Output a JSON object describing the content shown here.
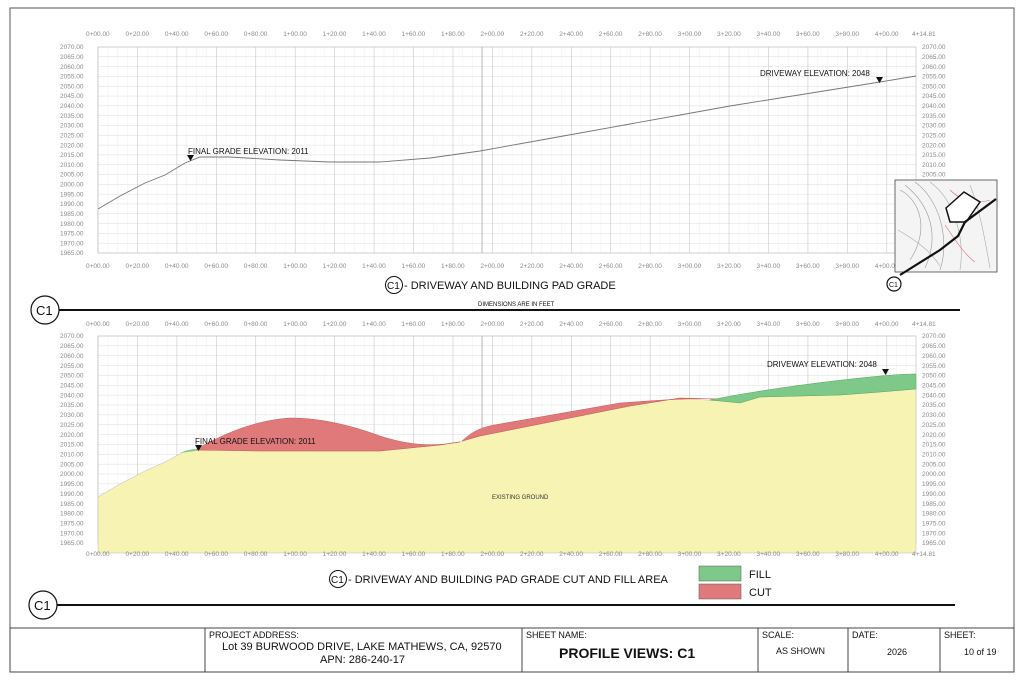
{
  "sheet": {
    "markers": {
      "c1_label": "C1"
    },
    "profile_top": {
      "title": "C1 - DRIVEWAY AND BUILDING PAD GRADE",
      "title_tag": "C1",
      "title_text": " - DRIVEWAY AND BUILDING PAD GRADE",
      "note": "DIMENSIONS ARE IN FEET",
      "annotations": [
        "FINAL GRADE ELEVATION: 2011",
        "DRIVEWAY ELEVATION: 2048"
      ]
    },
    "profile_bottom": {
      "title_tag": "C1",
      "title_text": " - DRIVEWAY AND BUILDING PAD GRADE CUT AND FILL AREA",
      "annotations": [
        "FINAL GRADE ELEVATION: 2011",
        "DRIVEWAY ELEVATION: 2048"
      ],
      "region_label": "EXISTING GROUND",
      "legend": [
        {
          "label": "FILL",
          "color": "#7ec98a"
        },
        {
          "label": "CUT",
          "color": "#e07a7a"
        }
      ]
    },
    "x_ticks": [
      "0+00.00",
      "0+20.00",
      "0+40.00",
      "0+60.00",
      "0+80.00",
      "1+00.00",
      "1+20.00",
      "1+40.00",
      "1+60.00",
      "1+80.00",
      "2+00.00",
      "2+20.00",
      "2+40.00",
      "2+60.00",
      "2+80.00",
      "3+00.00",
      "3+20.00",
      "3+40.00",
      "3+60.00",
      "3+80.00",
      "4+00.00",
      "4+14.81"
    ],
    "y_ticks": [
      "2070.00",
      "2065.00",
      "2060.00",
      "2055.00",
      "2050.00",
      "2045.00",
      "2040.00",
      "2035.00",
      "2030.00",
      "2025.00",
      "2020.00",
      "2015.00",
      "2010.00",
      "2005.00",
      "2000.00",
      "1995.00",
      "1990.00",
      "1985.00",
      "1980.00",
      "1975.00",
      "1970.00",
      "1965.00"
    ],
    "colors": {
      "fill": "#7ec98a",
      "cut": "#e07a7a",
      "existing_ground": "#f6f3b3",
      "grid": "#dcdcdc"
    }
  },
  "title_block": {
    "project_address_label": "PROJECT ADDRESS:",
    "project_address": "Lot 39 BURWOOD DRIVE, LAKE MATHEWS, CA, 92570",
    "apn": "APN: 286-240-17",
    "sheet_name_label": "SHEET NAME:",
    "sheet_name": "PROFILE VIEWS: C1",
    "scale_label": "SCALE:",
    "scale": "AS SHOWN",
    "date_label": "DATE:",
    "date": "2026",
    "sheet_label": "SHEET:",
    "sheet_no": "10 of 19"
  }
}
